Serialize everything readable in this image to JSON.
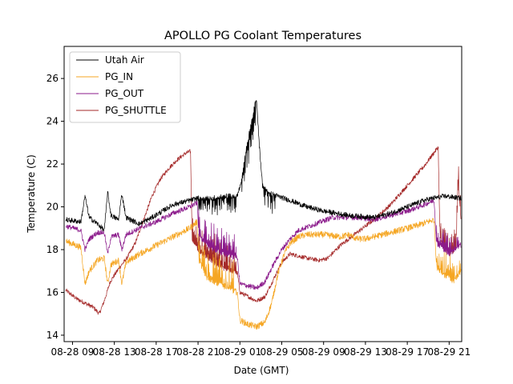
{
  "chart_data": {
    "type": "line",
    "title": "APOLLO PG Coolant Temperatures",
    "xlabel": "Date (GMT)",
    "ylabel": "Temperature (C)",
    "x_unit": "hours since 08-28 00:00 GMT",
    "xlim": [
      -1,
      46.5
    ],
    "ylim": [
      13.7,
      27.5
    ],
    "x_ticks": [
      {
        "x": 0,
        "label": "08-28 09"
      },
      {
        "x": 5,
        "label": "08-28 13"
      },
      {
        "x": 10,
        "label": "08-28 17"
      },
      {
        "x": 15,
        "label": "08-28 21"
      },
      {
        "x": 20,
        "label": "08-29 01"
      },
      {
        "x": 25,
        "label": "08-29 05"
      },
      {
        "x": 30,
        "label": "08-29 09"
      },
      {
        "x": 35,
        "label": "08-29 13"
      },
      {
        "x": 40,
        "label": "08-29 17"
      },
      {
        "x": 45,
        "label": "08-29 21"
      }
    ],
    "y_ticks": [
      14,
      16,
      18,
      20,
      22,
      24,
      26
    ],
    "legend_position": "top-left",
    "series": [
      {
        "name": "Utah Air",
        "color": "#000000",
        "noise": 0.12,
        "points": [
          [
            -0.8,
            19.4
          ],
          [
            1,
            19.3
          ],
          [
            1.5,
            20.5
          ],
          [
            2,
            19.5
          ],
          [
            3,
            19.2
          ],
          [
            3.8,
            18.9
          ],
          [
            4.2,
            20.7
          ],
          [
            4.6,
            19.6
          ],
          [
            5.5,
            19.4
          ],
          [
            5.9,
            20.6
          ],
          [
            6.4,
            19.5
          ],
          [
            8,
            19.2
          ],
          [
            9.5,
            19.5
          ],
          [
            12,
            20.1
          ],
          [
            14,
            20.3
          ],
          [
            15,
            20.4
          ],
          [
            16.5,
            20.4
          ],
          [
            18.5,
            20.5
          ],
          [
            19.7,
            20.5
          ],
          [
            20.2,
            21.3
          ],
          [
            20.8,
            22.8
          ],
          [
            21.3,
            23.8
          ],
          [
            21.8,
            24.8
          ],
          [
            22,
            25.0
          ],
          [
            22.3,
            23.0
          ],
          [
            22.7,
            21.0
          ],
          [
            23.3,
            20.7
          ],
          [
            24.5,
            20.5
          ],
          [
            26,
            20.3
          ],
          [
            28,
            20.0
          ],
          [
            30,
            19.8
          ],
          [
            33,
            19.6
          ],
          [
            36,
            19.5
          ],
          [
            38,
            19.7
          ],
          [
            40,
            20.0
          ],
          [
            42,
            20.3
          ],
          [
            43,
            20.4
          ],
          [
            44.5,
            20.5
          ],
          [
            46.4,
            20.4
          ]
        ],
        "spikes": [
          [
            15,
            19.6,
            0.8
          ],
          [
            20.2,
            22.0,
            1.2
          ],
          [
            22.8,
            24.3,
            0.9
          ]
        ]
      },
      {
        "name": "PG_IN",
        "color": "#f5a623",
        "noise": 0.15,
        "points": [
          [
            -0.8,
            18.4
          ],
          [
            1,
            18.1
          ],
          [
            1.5,
            16.4
          ],
          [
            2,
            17.0
          ],
          [
            3,
            17.5
          ],
          [
            3.8,
            17.6
          ],
          [
            4.2,
            16.4
          ],
          [
            4.6,
            17.3
          ],
          [
            5.5,
            17.5
          ],
          [
            5.9,
            16.4
          ],
          [
            6.4,
            17.4
          ],
          [
            8,
            17.8
          ],
          [
            10,
            18.2
          ],
          [
            12,
            18.6
          ],
          [
            14,
            19.0
          ],
          [
            14.9,
            19.3
          ],
          [
            15.1,
            17.5
          ],
          [
            16,
            16.7
          ],
          [
            17,
            16.5
          ],
          [
            18,
            16.3
          ],
          [
            19.7,
            16.0
          ],
          [
            20,
            14.7
          ],
          [
            21,
            14.5
          ],
          [
            22,
            14.4
          ],
          [
            23,
            14.6
          ],
          [
            23.8,
            15.5
          ],
          [
            24.5,
            16.8
          ],
          [
            25.3,
            17.8
          ],
          [
            26,
            18.3
          ],
          [
            27,
            18.6
          ],
          [
            28,
            18.7
          ],
          [
            30,
            18.7
          ],
          [
            32,
            18.6
          ],
          [
            33,
            18.7
          ],
          [
            34,
            18.5
          ],
          [
            35,
            18.5
          ],
          [
            37,
            18.7
          ],
          [
            39,
            18.9
          ],
          [
            41,
            19.1
          ],
          [
            43.2,
            19.4
          ],
          [
            43.5,
            17.2
          ],
          [
            44.5,
            16.8
          ],
          [
            45.5,
            16.5
          ],
          [
            46.4,
            17.0
          ]
        ],
        "spikes": [
          [
            15,
            19.3,
            1.5
          ],
          [
            43.5,
            46.4,
            1.2
          ]
        ]
      },
      {
        "name": "PG_OUT",
        "color": "#8b1a8b",
        "noise": 0.12,
        "points": [
          [
            -0.8,
            19.1
          ],
          [
            1,
            18.9
          ],
          [
            1.5,
            18.0
          ],
          [
            2,
            18.5
          ],
          [
            3,
            18.8
          ],
          [
            3.8,
            18.8
          ],
          [
            4.2,
            17.8
          ],
          [
            4.6,
            18.6
          ],
          [
            5.5,
            18.7
          ],
          [
            5.9,
            18.0
          ],
          [
            6.4,
            18.7
          ],
          [
            8,
            19.0
          ],
          [
            10,
            19.3
          ],
          [
            12,
            19.7
          ],
          [
            14,
            20.0
          ],
          [
            14.9,
            20.2
          ],
          [
            15.1,
            18.7
          ],
          [
            16,
            18.2
          ],
          [
            18,
            17.8
          ],
          [
            19.7,
            17.6
          ],
          [
            20,
            16.4
          ],
          [
            21,
            16.3
          ],
          [
            22,
            16.2
          ],
          [
            23,
            16.5
          ],
          [
            24,
            17.3
          ],
          [
            25,
            18.0
          ],
          [
            26,
            18.5
          ],
          [
            27,
            18.9
          ],
          [
            29,
            19.2
          ],
          [
            31,
            19.5
          ],
          [
            34,
            19.5
          ],
          [
            36,
            19.4
          ],
          [
            38,
            19.6
          ],
          [
            40,
            19.8
          ],
          [
            42,
            20.1
          ],
          [
            43.2,
            20.3
          ],
          [
            43.5,
            18.3
          ],
          [
            45,
            17.8
          ],
          [
            46.4,
            18.2
          ]
        ],
        "spikes": [
          [
            15,
            19.6,
            1.2
          ],
          [
            43.5,
            46.4,
            1.0
          ]
        ]
      },
      {
        "name": "PG_SHUTTLE",
        "color": "#a52a2a",
        "noise": 0.1,
        "points": [
          [
            -0.8,
            16.1
          ],
          [
            0.5,
            15.7
          ],
          [
            1.5,
            15.5
          ],
          [
            2.5,
            15.3
          ],
          [
            3.2,
            15.0
          ],
          [
            3.8,
            15.6
          ],
          [
            4.5,
            16.5
          ],
          [
            5.5,
            17.1
          ],
          [
            6.5,
            17.6
          ],
          [
            7.5,
            18.3
          ],
          [
            8.5,
            19.4
          ],
          [
            9.5,
            20.5
          ],
          [
            10.5,
            21.3
          ],
          [
            11.5,
            21.8
          ],
          [
            12.5,
            22.2
          ],
          [
            13.5,
            22.5
          ],
          [
            14.1,
            22.6
          ],
          [
            14.3,
            18.5
          ],
          [
            15,
            18.0
          ],
          [
            16.5,
            17.5
          ],
          [
            18,
            17.1
          ],
          [
            19.7,
            16.9
          ],
          [
            20,
            16.0
          ],
          [
            21,
            15.8
          ],
          [
            22,
            15.6
          ],
          [
            23,
            15.8
          ],
          [
            24,
            16.6
          ],
          [
            25,
            17.4
          ],
          [
            26,
            17.8
          ],
          [
            28,
            17.6
          ],
          [
            29.5,
            17.5
          ],
          [
            30.5,
            17.6
          ],
          [
            32,
            18.2
          ],
          [
            34,
            18.8
          ],
          [
            36,
            19.4
          ],
          [
            38,
            20.1
          ],
          [
            40,
            21.0
          ],
          [
            42,
            21.9
          ],
          [
            43.7,
            22.8
          ],
          [
            43.9,
            18.5
          ],
          [
            45,
            17.8
          ],
          [
            45.8,
            18.0
          ],
          [
            46.1,
            21.2
          ],
          [
            46.4,
            19.5
          ]
        ],
        "spikes": [
          [
            14.3,
            19.6,
            1.3
          ],
          [
            43.9,
            46.4,
            1.0
          ]
        ]
      }
    ]
  }
}
